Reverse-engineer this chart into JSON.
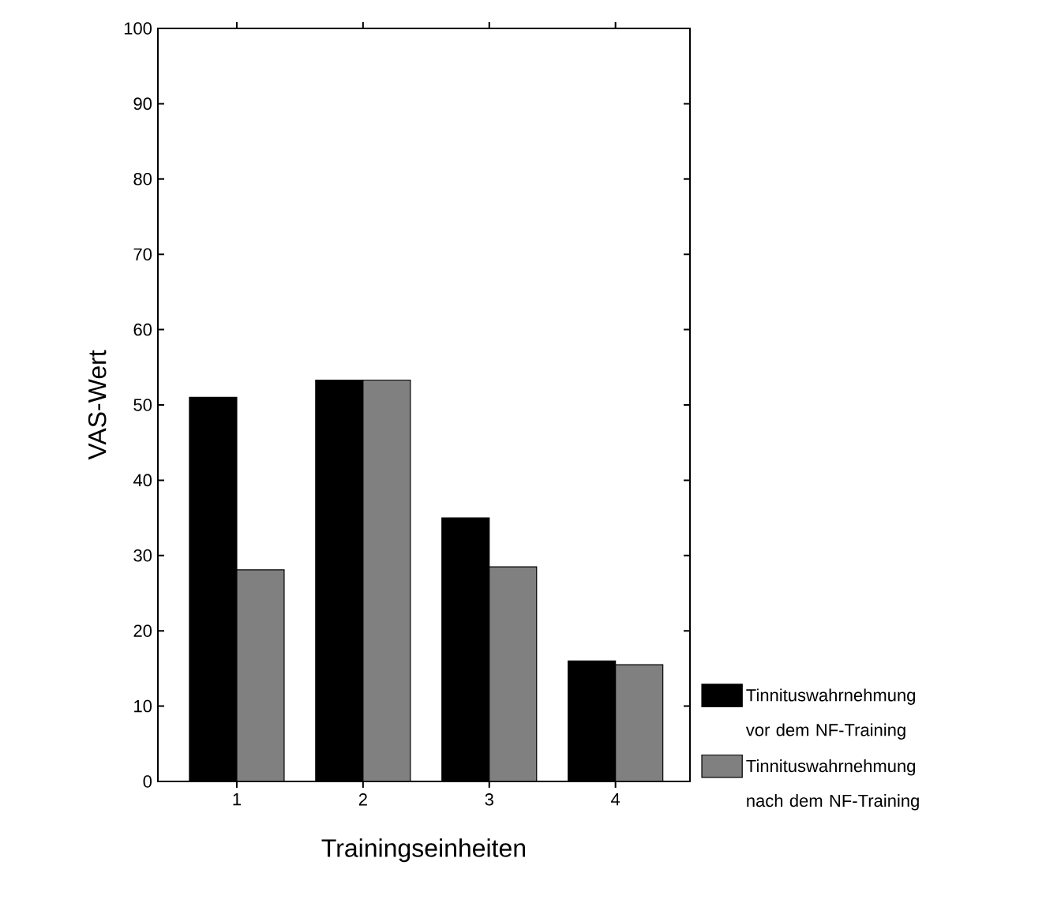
{
  "chart_data": {
    "type": "bar",
    "xlabel": "Trainingseinheiten",
    "ylabel": "VAS-Wert",
    "categories": [
      "1",
      "2",
      "3",
      "4"
    ],
    "series": [
      {
        "name": "Tinnituswahrnehmung vor dem NF-Training",
        "color": "#000000",
        "values": [
          51,
          53.3,
          35,
          16
        ]
      },
      {
        "name": "Tinnituswahrnehmung nach dem NF-Training",
        "color": "#808080",
        "values": [
          28.1,
          53.3,
          28.5,
          15.5
        ]
      }
    ],
    "ylim": [
      0,
      100
    ],
    "yticks": [
      0,
      10,
      20,
      30,
      40,
      50,
      60,
      70,
      80,
      90,
      100
    ],
    "grid": false,
    "legend": "bottom right"
  }
}
